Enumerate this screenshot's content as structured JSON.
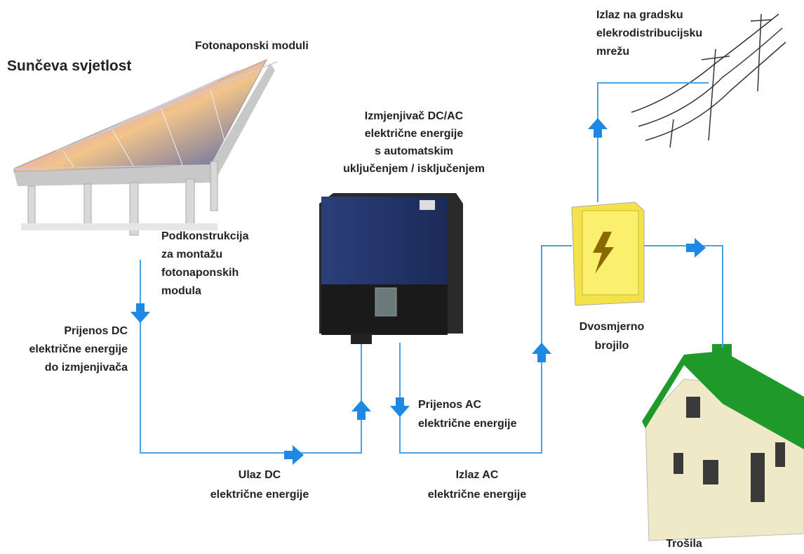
{
  "labels": [
    {
      "lines": [
        "Sunčeva svjetlost"
      ]
    },
    {
      "lines": [
        "Fotonaponski moduli"
      ]
    },
    {
      "lines": [
        "Izmjenjivač DC/AC",
        "električne energije",
        "s automatskim",
        "uključenjem / isključenjem"
      ]
    },
    {
      "lines": [
        "Izlaz na gradsku",
        "elekrodistribucijsku",
        "mrežu"
      ]
    },
    {
      "lines": [
        "Podkonstrukcija",
        "za montažu",
        "fotonaponskih",
        "modula"
      ]
    },
    {
      "lines": [
        "Prijenos DC",
        "električne energije",
        "do izmjenjivača"
      ]
    },
    {
      "lines": [
        "Ulaz DC",
        "električne energije"
      ]
    },
    {
      "lines": [
        "Prijenos AC",
        "električne energije"
      ]
    },
    {
      "lines": [
        "Izlaz AC",
        "električne energije"
      ]
    },
    {
      "lines": [
        "Dvosmjerno",
        "brojilo"
      ]
    },
    {
      "lines": [
        "Trošila"
      ]
    }
  ]
}
